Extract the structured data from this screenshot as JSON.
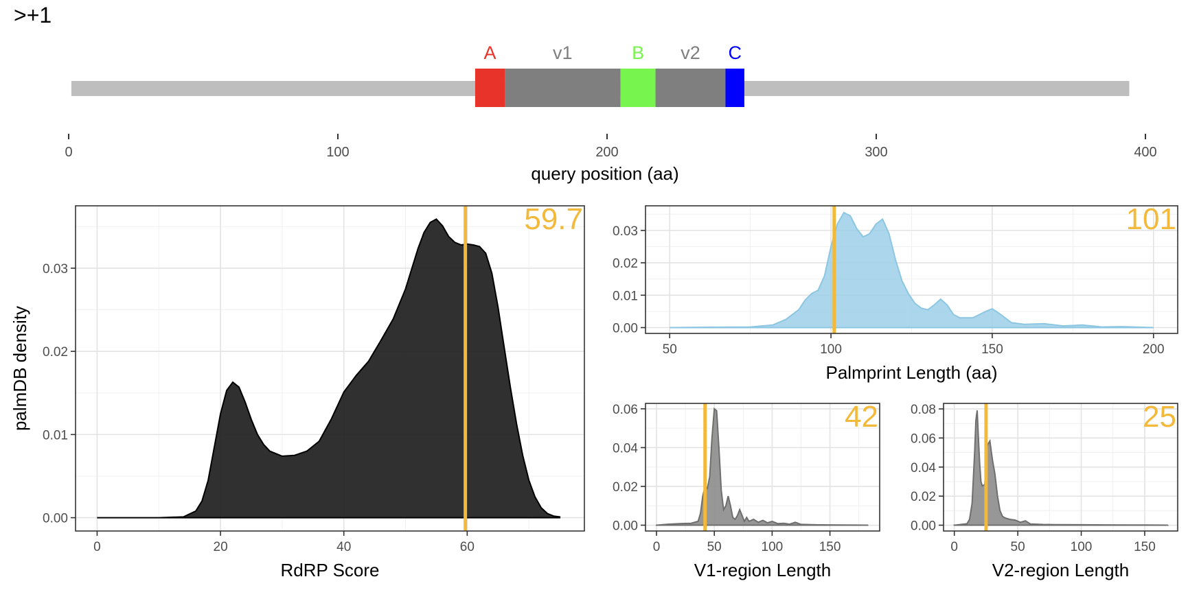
{
  "page": {
    "title": ">+1"
  },
  "colors": {
    "accent": "#f2b93b",
    "track": "#bebebe",
    "region_gray": "#7f7f7f",
    "motif_a": "#e8332a",
    "motif_b": "#77f44d",
    "motif_c": "#0000ff",
    "density_black": "#1a1a1a",
    "palmprint_fill": "#9ccfe8",
    "region_fill": "#8c8c8c"
  },
  "chart_data": [
    {
      "id": "domain_map",
      "type": "bar",
      "xlabel": "query position (aa)",
      "xlim": [
        0,
        400
      ],
      "xticks": [
        0,
        100,
        200,
        300,
        400
      ],
      "track": {
        "start": 1,
        "end": 394
      },
      "segments": [
        {
          "label": "A",
          "start": 151,
          "end": 162,
          "color_key": "motif_a",
          "label_color": "#e8332a"
        },
        {
          "label": "v1",
          "start": 162,
          "end": 205,
          "color_key": "region_gray",
          "label_color": "#7f7f7f"
        },
        {
          "label": "B",
          "start": 205,
          "end": 218,
          "color_key": "motif_b",
          "label_color": "#77f44d"
        },
        {
          "label": "v2",
          "start": 218,
          "end": 244,
          "color_key": "region_gray",
          "label_color": "#7f7f7f"
        },
        {
          "label": "C",
          "start": 244,
          "end": 251,
          "color_key": "motif_c",
          "label_color": "#0000ff"
        }
      ]
    },
    {
      "id": "rdrp_score",
      "type": "area",
      "xlabel": "RdRP Score",
      "ylabel": "palmDB density",
      "xlim": [
        -3.5,
        79
      ],
      "ylim": [
        -0.0016,
        0.0375
      ],
      "xticks": [
        0,
        20,
        40,
        60
      ],
      "yticks": [
        0.0,
        0.01,
        0.02,
        0.03
      ],
      "yformat": 2,
      "grid": true,
      "marker": 59.7,
      "marker_label": "59.7",
      "fill_key": "density_black",
      "fill_opacity": 0.9,
      "x": [
        0,
        10,
        14,
        16,
        17,
        18,
        19,
        20,
        21,
        22,
        23,
        24,
        25,
        26,
        27,
        28,
        30,
        32,
        34,
        36,
        38,
        40,
        42,
        44,
        46,
        48,
        50,
        52,
        53,
        54,
        55,
        56,
        57,
        58,
        59,
        60,
        61,
        62,
        63,
        64,
        65,
        66,
        67,
        68,
        69,
        70,
        71,
        72,
        73,
        74,
        75
      ],
      "y": [
        0,
        0,
        0.0001,
        0.0008,
        0.002,
        0.0045,
        0.0085,
        0.0125,
        0.0153,
        0.0163,
        0.0157,
        0.0139,
        0.0118,
        0.01,
        0.0088,
        0.008,
        0.0074,
        0.0075,
        0.008,
        0.0092,
        0.0119,
        0.0151,
        0.0171,
        0.0188,
        0.0213,
        0.0239,
        0.0275,
        0.0323,
        0.0343,
        0.0355,
        0.0359,
        0.0351,
        0.0338,
        0.0331,
        0.0328,
        0.0329,
        0.0328,
        0.0326,
        0.0318,
        0.0294,
        0.0253,
        0.0205,
        0.0157,
        0.0113,
        0.0075,
        0.0045,
        0.0025,
        0.0012,
        0.0005,
        0.0002,
        0.0001
      ]
    },
    {
      "id": "palmprint_length",
      "type": "area",
      "xlabel": "Palmprint Length (aa)",
      "xlim": [
        42.5,
        207.5
      ],
      "ylim": [
        -0.0018,
        0.0376
      ],
      "xticks": [
        50,
        100,
        150,
        200
      ],
      "yticks": [
        0.0,
        0.01,
        0.02,
        0.03
      ],
      "yformat": 2,
      "grid": true,
      "marker": 101,
      "marker_label": "101",
      "fill_key": "palmprint_fill",
      "fill_opacity": 0.85,
      "x": [
        50,
        75,
        82,
        86,
        90,
        92,
        94,
        96,
        98,
        100,
        102,
        104,
        106,
        108,
        110,
        112,
        114,
        116,
        118,
        120,
        122,
        124,
        126,
        128,
        130,
        132,
        134,
        136,
        138,
        140,
        144,
        148,
        150,
        152,
        156,
        160,
        166,
        172,
        178,
        184,
        190,
        200
      ],
      "y": [
        0,
        0.0002,
        0.0008,
        0.0025,
        0.0055,
        0.0085,
        0.0105,
        0.0115,
        0.016,
        0.025,
        0.032,
        0.0355,
        0.0345,
        0.0305,
        0.028,
        0.029,
        0.032,
        0.0335,
        0.029,
        0.021,
        0.0145,
        0.0105,
        0.0075,
        0.006,
        0.0055,
        0.007,
        0.0088,
        0.007,
        0.004,
        0.003,
        0.003,
        0.005,
        0.0058,
        0.0045,
        0.0015,
        0.001,
        0.0012,
        0.0005,
        0.0008,
        0.0002,
        0.0003,
        0
      ]
    },
    {
      "id": "v1_length",
      "type": "area",
      "xlabel": "V1-region Length",
      "xlim": [
        -9.5,
        193
      ],
      "ylim": [
        -0.003,
        0.0628
      ],
      "xticks": [
        0,
        50,
        100,
        150
      ],
      "yticks": [
        0.0,
        0.02,
        0.04,
        0.06
      ],
      "yformat": 2,
      "grid": true,
      "marker": 42,
      "marker_label": "42",
      "fill_key": "region_fill",
      "fill_opacity": 0.9,
      "x": [
        0,
        10,
        20,
        30,
        36,
        38,
        40,
        42,
        44,
        46,
        48,
        50,
        52,
        54,
        56,
        58,
        60,
        62,
        64,
        66,
        68,
        70,
        72,
        74,
        76,
        78,
        80,
        84,
        88,
        92,
        96,
        100,
        105,
        110,
        115,
        120,
        125,
        140,
        160,
        183
      ],
      "y": [
        0,
        0.0005,
        0.0008,
        0.001,
        0.002,
        0.006,
        0.015,
        0.02,
        0.019,
        0.025,
        0.045,
        0.06,
        0.059,
        0.04,
        0.018,
        0.008,
        0.01,
        0.015,
        0.01,
        0.004,
        0.003,
        0.005,
        0.008,
        0.005,
        0.002,
        0.004,
        0.002,
        0.003,
        0.0015,
        0.0025,
        0.0012,
        0.002,
        0.0008,
        0.001,
        0.0005,
        0.0015,
        0.0004,
        0.0002,
        0.0001,
        0
      ]
    },
    {
      "id": "v2_length",
      "type": "area",
      "xlabel": "V2-region Length",
      "xlim": [
        -8.5,
        176
      ],
      "ylim": [
        -0.004,
        0.0838
      ],
      "xticks": [
        0,
        50,
        100,
        150
      ],
      "yticks": [
        0.0,
        0.02,
        0.04,
        0.06,
        0.08
      ],
      "yformat": 2,
      "grid": true,
      "marker": 25,
      "marker_label": "25",
      "fill_key": "region_fill",
      "fill_opacity": 0.9,
      "x": [
        0,
        5,
        10,
        12,
        14,
        16,
        17,
        18,
        19,
        20,
        21,
        22,
        24,
        25,
        26,
        28,
        30,
        32,
        34,
        36,
        38,
        40,
        44,
        48,
        52,
        56,
        60,
        70,
        80,
        100,
        120,
        150,
        168
      ],
      "y": [
        0,
        0.0005,
        0.001,
        0.004,
        0.015,
        0.05,
        0.072,
        0.079,
        0.06,
        0.042,
        0.03,
        0.027,
        0.028,
        0.042,
        0.055,
        0.058,
        0.045,
        0.035,
        0.02,
        0.01,
        0.006,
        0.005,
        0.004,
        0.0035,
        0.002,
        0.003,
        0.0008,
        0.0005,
        0.0004,
        0.0003,
        0.0002,
        0.0001,
        0
      ]
    }
  ]
}
